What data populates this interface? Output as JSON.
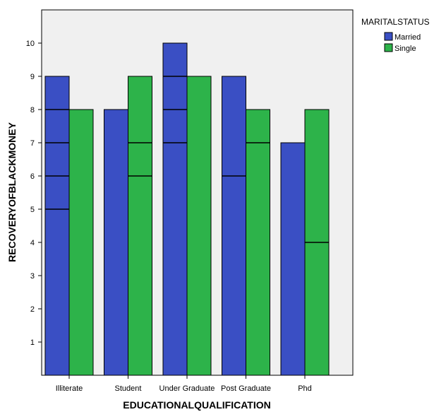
{
  "chart_data": {
    "type": "bar",
    "xlabel": "EDUCATIONALQUALIFICATION",
    "ylabel": "RECOVERYOFBLACKMONEY",
    "ylim": [
      0,
      11
    ],
    "yticks": [
      1,
      2,
      3,
      4,
      5,
      6,
      7,
      8,
      9,
      10
    ],
    "categories": [
      "Illiterate",
      "Student",
      "Under Graduate",
      "Post Graduate",
      "Phd"
    ],
    "series": [
      {
        "name": "Married",
        "color": "#3a4fc4",
        "values": [
          9,
          8,
          10,
          9,
          7
        ],
        "segment_lines": [
          [
            8,
            7,
            6,
            5
          ],
          [],
          [
            9,
            8,
            7
          ],
          [
            6
          ],
          []
        ]
      },
      {
        "name": "Single",
        "color": "#2db34a",
        "values": [
          8,
          9,
          9,
          8,
          8
        ],
        "segment_lines": [
          [],
          [
            7,
            6
          ],
          [],
          [
            7
          ],
          [
            4
          ]
        ]
      }
    ],
    "legend": {
      "title": "MARITALSTATUS",
      "placement": "top-right"
    },
    "plot_background": "#f0f0f0",
    "grid": false
  }
}
